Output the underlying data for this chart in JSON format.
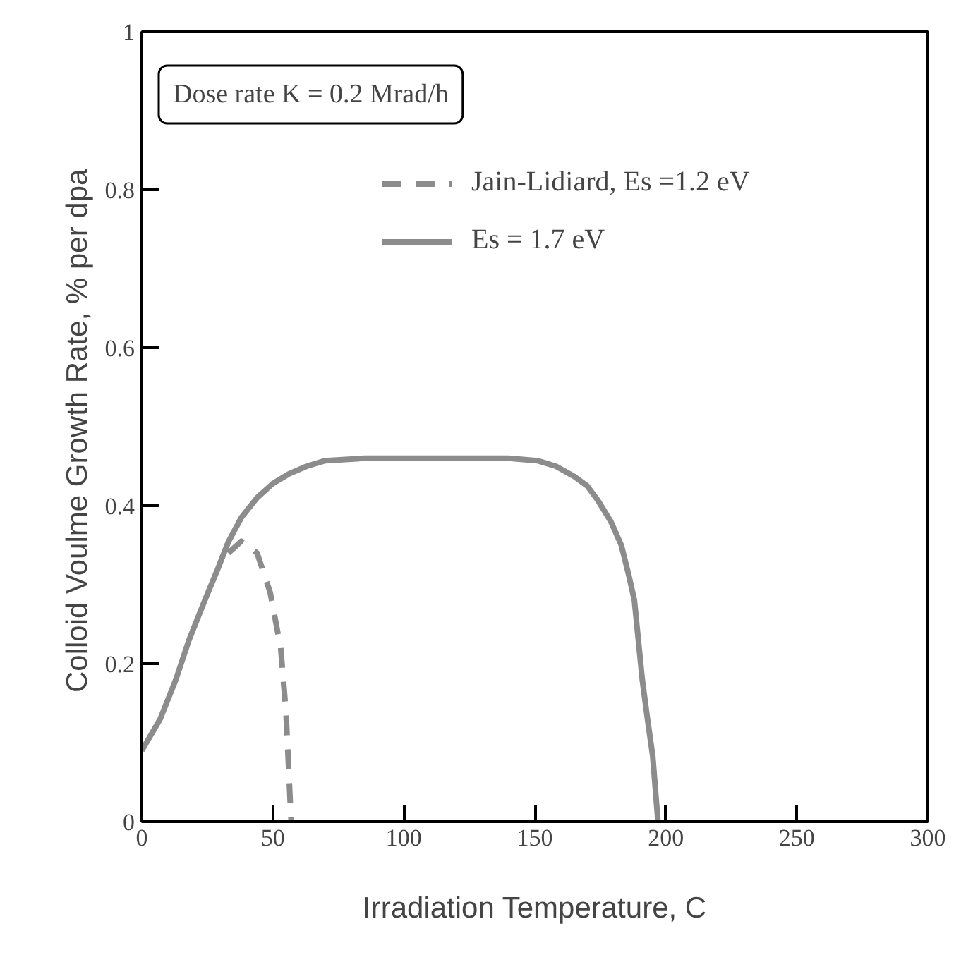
{
  "chart_data": {
    "type": "line",
    "xlabel": "Irradiation Temperature, C",
    "ylabel": "Colloid Voulme Growth Rate,  % per dpa",
    "annotations": [
      "Dose rate K = 0.2 Mrad/h"
    ],
    "series": [
      {
        "name": "Jain-Lidiard, Es =1.2 eV",
        "color": "#8c8c8c",
        "line_style": "dashed",
        "x": [
          33,
          38,
          44,
          49,
          53,
          55,
          57
        ],
        "values": [
          0.34,
          0.355,
          0.34,
          0.29,
          0.22,
          0.14,
          0
        ]
      },
      {
        "name": "Es = 1.7 eV",
        "color": "#8c8c8c",
        "line_style": "solid",
        "x": [
          0,
          7,
          13,
          18,
          24,
          29,
          33,
          38,
          44,
          50,
          56,
          63,
          70,
          85,
          100,
          120,
          140,
          151,
          158,
          165,
          170,
          174,
          179,
          183,
          186,
          188,
          191,
          193,
          195,
          197
        ],
        "values": [
          0.09,
          0.13,
          0.18,
          0.23,
          0.28,
          0.32,
          0.354,
          0.385,
          0.41,
          0.428,
          0.44,
          0.45,
          0.457,
          0.46,
          0.46,
          0.46,
          0.46,
          0.457,
          0.45,
          0.437,
          0.425,
          0.407,
          0.38,
          0.35,
          0.31,
          0.28,
          0.18,
          0.13,
          0.083,
          0
        ]
      }
    ],
    "xlim": [
      0,
      300
    ],
    "ylim": [
      0,
      1
    ],
    "xticks": [
      0,
      50,
      100,
      150,
      200,
      250,
      300
    ],
    "yticks": [
      0,
      0.2,
      0.4,
      0.6,
      0.8,
      1
    ],
    "grid": false,
    "legend": "top right",
    "marker": "none"
  }
}
